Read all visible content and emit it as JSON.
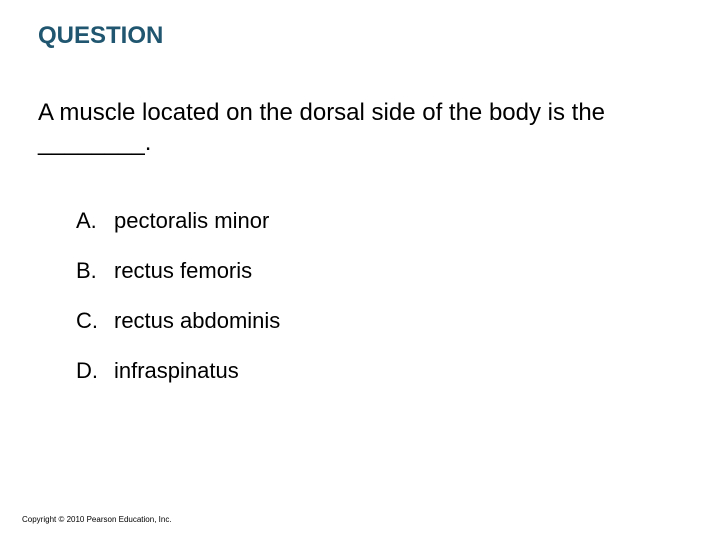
{
  "heading": {
    "text": "QUESTION",
    "color": "#20566f",
    "fontsize": 24,
    "fontweight": "bold"
  },
  "question": {
    "text": "A muscle located on the dorsal side of the body is the ________.",
    "color": "#000000",
    "fontsize": 24
  },
  "options": {
    "fontsize": 22,
    "color": "#000000",
    "row_gap": 24,
    "items": [
      {
        "letter": "A.",
        "text": "pectoralis minor"
      },
      {
        "letter": "B.",
        "text": "rectus femoris"
      },
      {
        "letter": "C.",
        "text": "rectus abdominis"
      },
      {
        "letter": "D.",
        "text": "infraspinatus"
      }
    ]
  },
  "copyright": {
    "text": "Copyright © 2010 Pearson Education, Inc.",
    "color": "#000000",
    "fontsize": 8
  },
  "background_color": "#ffffff"
}
